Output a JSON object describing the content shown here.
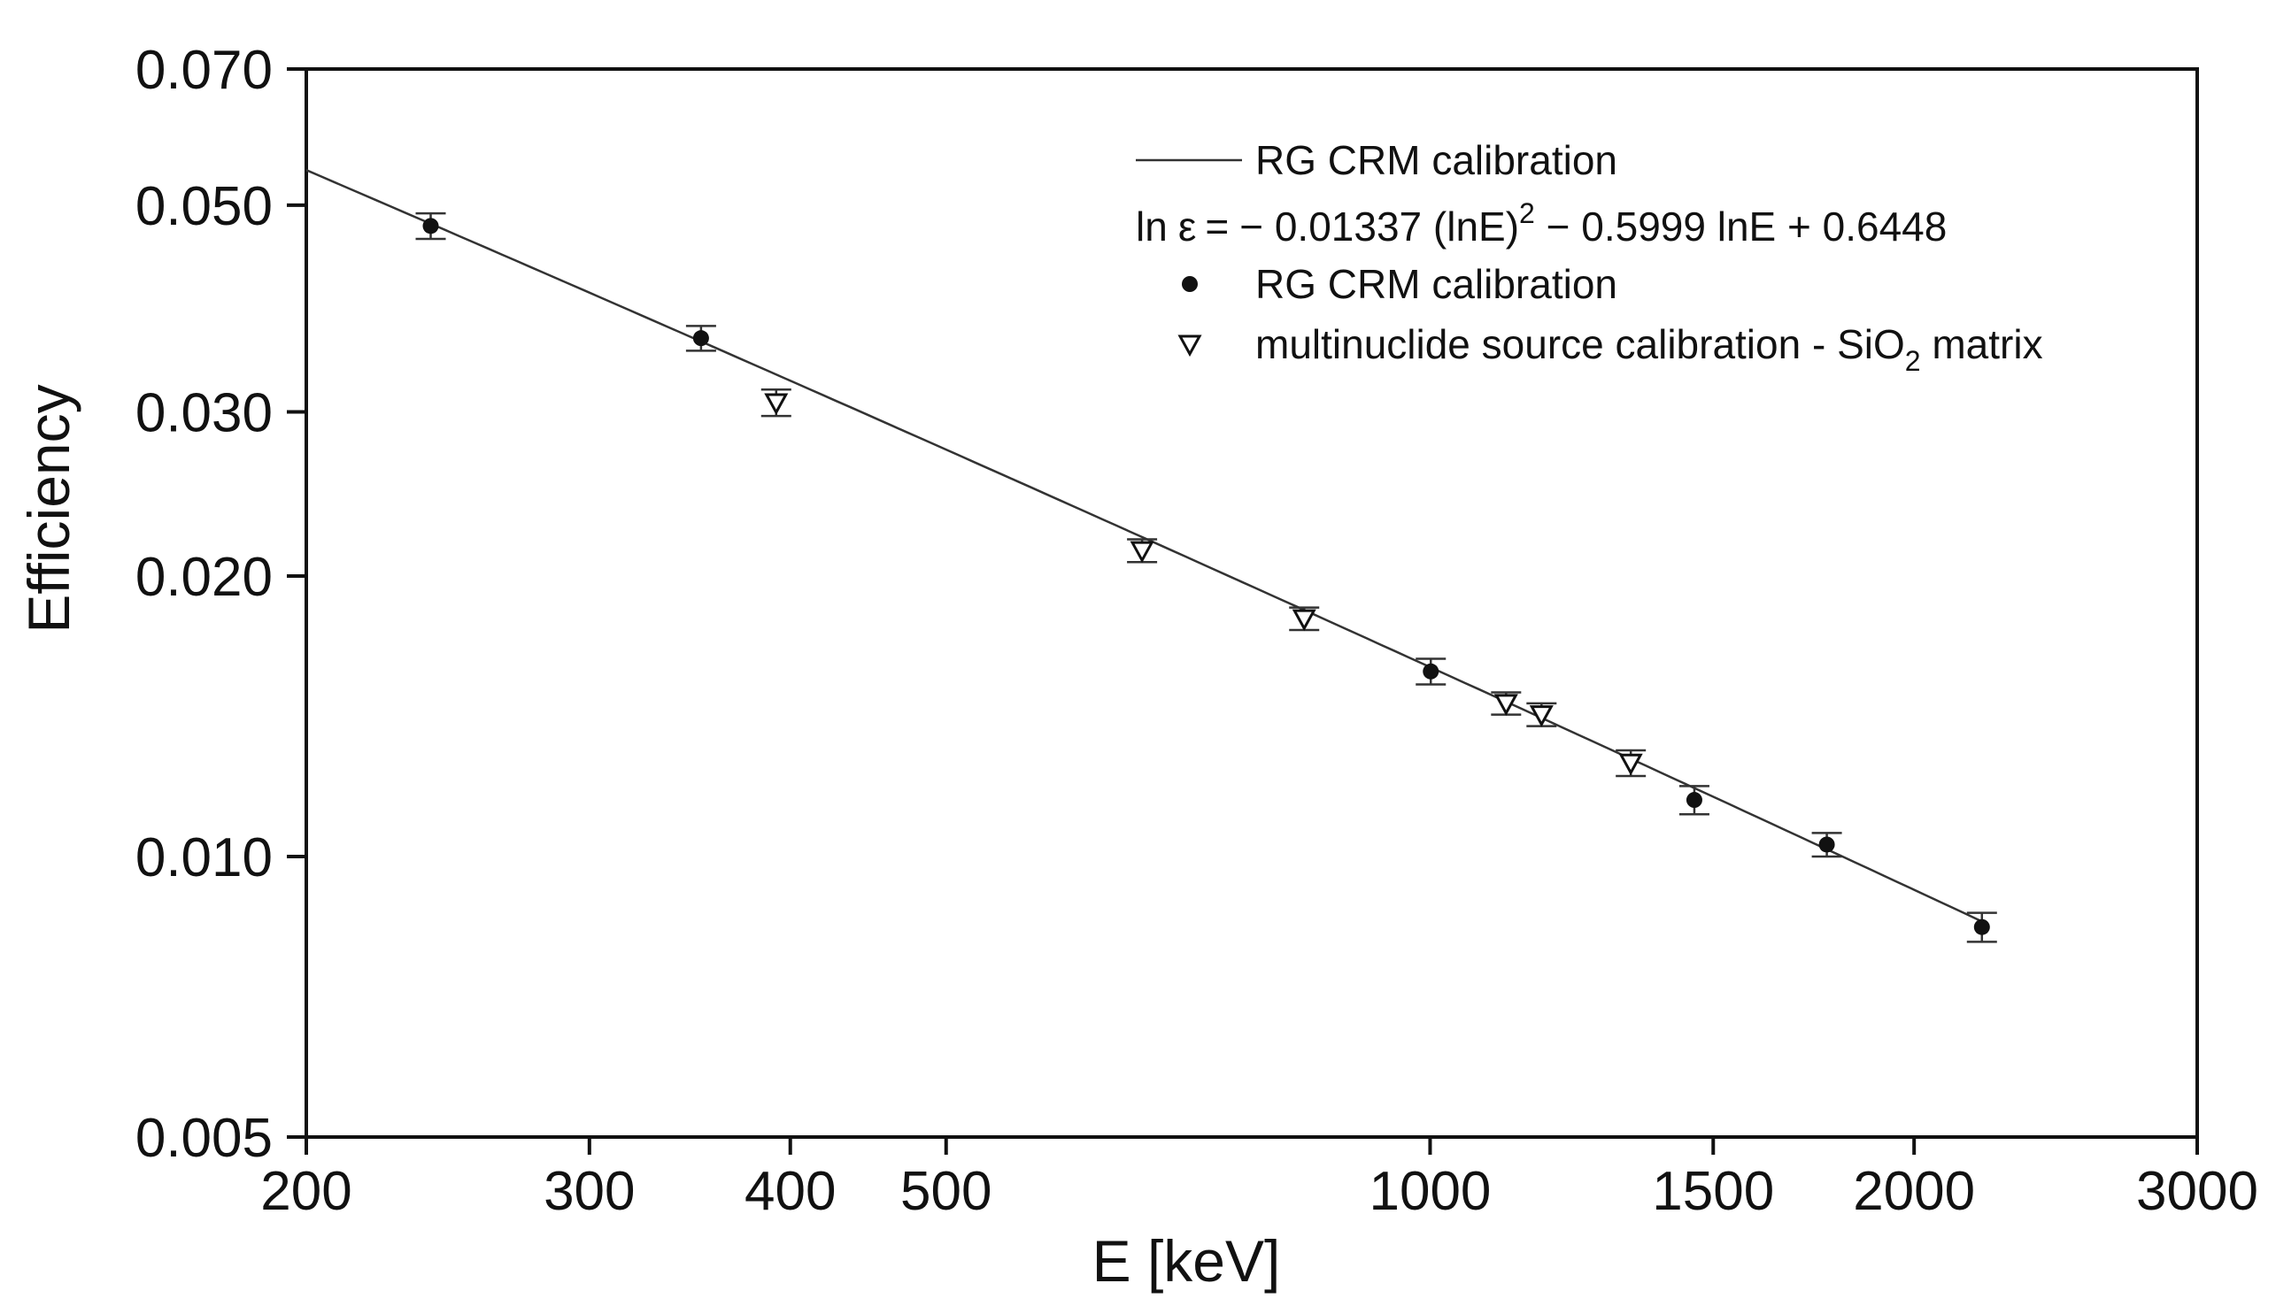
{
  "chart_data": {
    "type": "scatter",
    "title": "",
    "xlabel": "E [keV]",
    "ylabel": "Efficiency",
    "x_scale": "log",
    "y_scale": "log",
    "xlim": [
      200,
      3000
    ],
    "ylim": [
      0.005,
      0.07
    ],
    "x_ticks": [
      {
        "value": 200,
        "label": "200"
      },
      {
        "value": 300,
        "label": "300"
      },
      {
        "value": 400,
        "label": "400"
      },
      {
        "value": 500,
        "label": "500"
      },
      {
        "value": 1000,
        "label": "1000"
      },
      {
        "value": 1500,
        "label": "1500"
      },
      {
        "value": 2000,
        "label": "2000"
      },
      {
        "value": 3000,
        "label": "3000"
      }
    ],
    "y_ticks": [
      {
        "value": 0.005,
        "label": "0.005"
      },
      {
        "value": 0.01,
        "label": "0.010"
      },
      {
        "value": 0.02,
        "label": "0.020"
      },
      {
        "value": 0.03,
        "label": "0.030"
      },
      {
        "value": 0.05,
        "label": "0.050"
      },
      {
        "value": 0.07,
        "label": "0.070"
      }
    ],
    "grid": false,
    "legend_position": "top-right",
    "legend": {
      "line_label": "RG CRM calibration",
      "equation": {
        "prefix": "ln",
        "symbol": "ε",
        "eq": "=",
        "part1": "− 0.01337 (lnE)",
        "exponent": "2",
        "part2": " − 0.5999 lnE + 0.6448"
      },
      "dot_label": "RG CRM calibration",
      "triangle_label": {
        "main": "multinuclide source calibration - SiO",
        "subscript": "2",
        "tail": " matrix"
      }
    },
    "fit": {
      "name": "RG CRM calibration fit",
      "a": -0.01337,
      "b": -0.5999,
      "c": 0.6448,
      "x_range": [
        200,
        2200
      ]
    },
    "series": [
      {
        "name": "RG CRM calibration",
        "marker": "filled-circle",
        "points": [
          {
            "x": 239,
            "y": 0.0475,
            "err": 0.0015
          },
          {
            "x": 352,
            "y": 0.036,
            "err": 0.0011
          },
          {
            "x": 1001,
            "y": 0.0158,
            "err": 0.0005
          },
          {
            "x": 1460,
            "y": 0.0115,
            "err": 0.0004
          },
          {
            "x": 1765,
            "y": 0.0103,
            "err": 0.0003
          },
          {
            "x": 2204,
            "y": 0.0084,
            "err": 0.0003
          }
        ]
      },
      {
        "name": "multinuclide source calibration - SiO2 matrix",
        "marker": "open-triangle-down",
        "points": [
          {
            "x": 392,
            "y": 0.0307,
            "err": 0.001
          },
          {
            "x": 662,
            "y": 0.0213,
            "err": 0.0006
          },
          {
            "x": 835,
            "y": 0.018,
            "err": 0.0005
          },
          {
            "x": 1115,
            "y": 0.0146,
            "err": 0.0004
          },
          {
            "x": 1173,
            "y": 0.0142,
            "err": 0.0004
          },
          {
            "x": 1333,
            "y": 0.0126,
            "err": 0.0004
          }
        ]
      }
    ],
    "colors": {
      "axis": "#111111",
      "marker": "#111111",
      "fit_line": "#333333",
      "error_bar": "#333333",
      "background": "#ffffff"
    }
  }
}
